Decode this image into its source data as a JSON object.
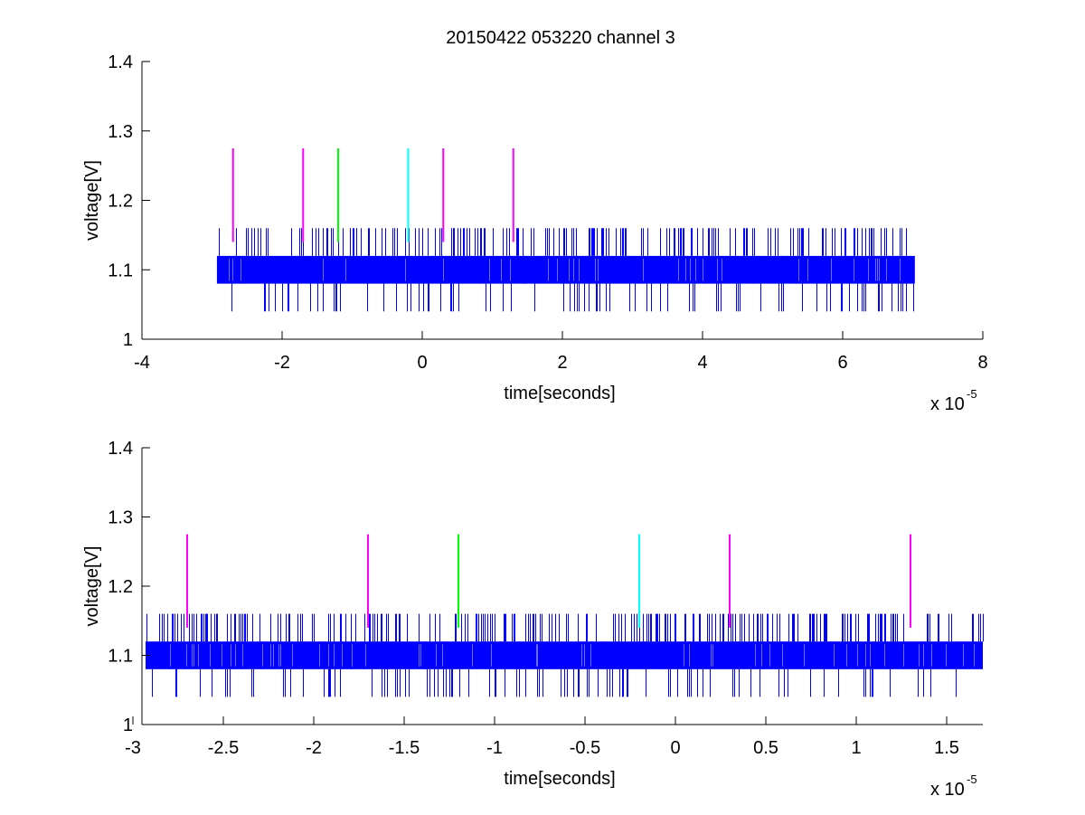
{
  "figure_title": "20150422 053220 channel 3",
  "chart_data": [
    {
      "type": "line",
      "title": "20150422 053220 channel 3",
      "xlabel": "time[seconds]",
      "ylabel": "voltage[V]",
      "x_multiplier_label": "x 10",
      "x_multiplier_exponent": "-5",
      "xlim": [
        -4,
        8
      ],
      "ylim": [
        1,
        1.4
      ],
      "x_ticks": [
        -4,
        -2,
        0,
        2,
        4,
        6,
        8
      ],
      "x_tick_labels": [
        "-4",
        "-2",
        "0",
        "2",
        "4",
        "6",
        "8"
      ],
      "y_ticks": [
        1,
        1.1,
        1.2,
        1.3,
        1.4
      ],
      "y_tick_labels": [
        "1",
        "1.1",
        "1.2",
        "1.3",
        "1.4"
      ],
      "grid": false,
      "signal": {
        "color": "#0000ff",
        "x_range": [
          -2.93,
          7.03
        ],
        "levels": [
          1.04,
          1.08,
          1.12,
          1.16
        ],
        "band": [
          1.08,
          1.12
        ],
        "description_levels": "digitized noise toggling mainly between 1.08 and 1.12 with spikes to 1.04 and 1.16"
      },
      "markers": [
        {
          "x": -2.7,
          "y_top": 1.275,
          "y_bottom": 1.14,
          "color": "#ff00ff"
        },
        {
          "x": -1.7,
          "y_top": 1.275,
          "y_bottom": 1.14,
          "color": "#ff00ff"
        },
        {
          "x": -1.2,
          "y_top": 1.275,
          "y_bottom": 1.14,
          "color": "#00ff00"
        },
        {
          "x": -0.2,
          "y_top": 1.275,
          "y_bottom": 1.14,
          "color": "#00ffff"
        },
        {
          "x": 0.3,
          "y_top": 1.275,
          "y_bottom": 1.14,
          "color": "#ff00ff"
        },
        {
          "x": 1.3,
          "y_top": 1.275,
          "y_bottom": 1.14,
          "color": "#ff00ff"
        }
      ]
    },
    {
      "type": "line",
      "title": "",
      "xlabel": "time[seconds]",
      "ylabel": "voltage[V]",
      "x_multiplier_label": "x 10",
      "x_multiplier_exponent": "-5",
      "xlim": [
        -2.95,
        1.7
      ],
      "ylim": [
        1,
        1.4
      ],
      "x_ticks": [
        -3,
        -2.5,
        -2,
        -1.5,
        -1,
        -0.5,
        0,
        0.5,
        1,
        1.5
      ],
      "x_tick_labels": [
        "-3",
        "-2.5",
        "-2",
        "-1.5",
        "-1",
        "-0.5",
        "0",
        "0.5",
        "1",
        "1.5"
      ],
      "y_ticks": [
        1,
        1.1,
        1.2,
        1.3,
        1.4
      ],
      "y_tick_labels": [
        "1",
        "1.1",
        "1.2",
        "1.3",
        "1.4"
      ],
      "grid": false,
      "signal": {
        "color": "#0000ff",
        "x_range": [
          -2.93,
          1.7
        ],
        "levels": [
          1.04,
          1.08,
          1.12,
          1.16
        ],
        "band": [
          1.08,
          1.12
        ]
      },
      "markers": [
        {
          "x": -2.7,
          "y_top": 1.275,
          "y_bottom": 1.14,
          "color": "#ff00ff"
        },
        {
          "x": -1.7,
          "y_top": 1.275,
          "y_bottom": 1.14,
          "color": "#ff00ff"
        },
        {
          "x": -1.2,
          "y_top": 1.275,
          "y_bottom": 1.14,
          "color": "#00ff00"
        },
        {
          "x": -0.2,
          "y_top": 1.275,
          "y_bottom": 1.14,
          "color": "#00ffff"
        },
        {
          "x": 0.3,
          "y_top": 1.275,
          "y_bottom": 1.14,
          "color": "#ff00ff"
        },
        {
          "x": 1.3,
          "y_top": 1.275,
          "y_bottom": 1.14,
          "color": "#ff00ff"
        }
      ]
    }
  ]
}
